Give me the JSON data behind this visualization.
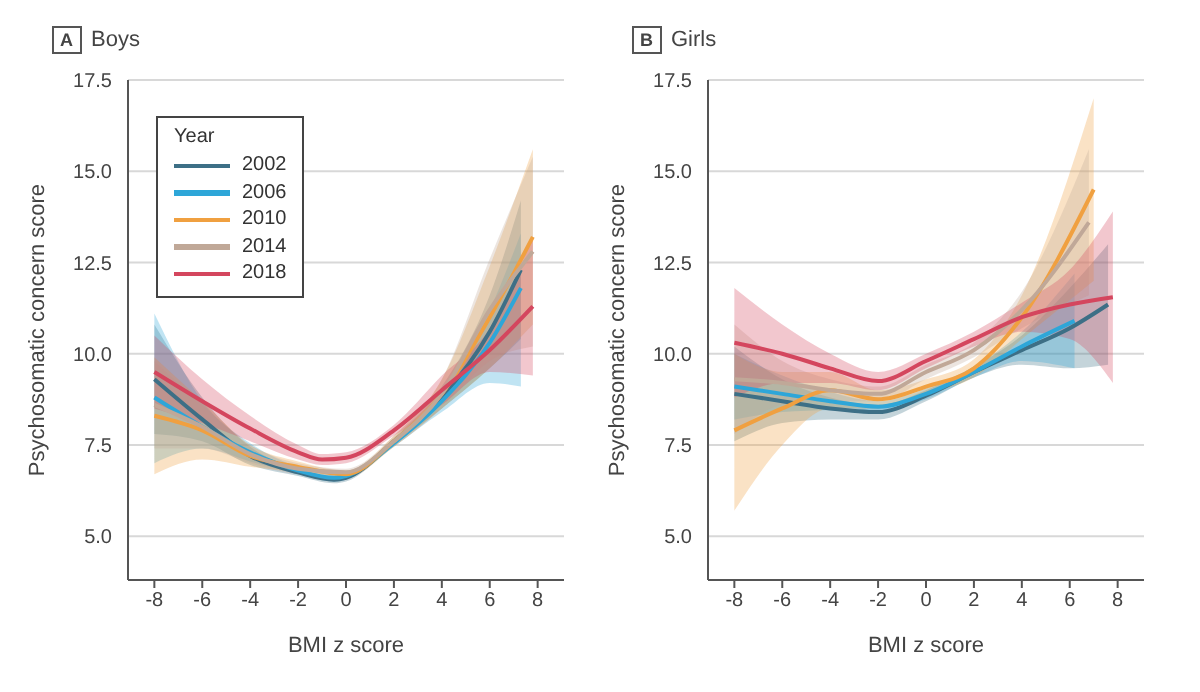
{
  "chart_data": [
    {
      "type": "line",
      "title": "Boys",
      "annotations": [
        "A"
      ],
      "xlabel": "BMI z score",
      "ylabel": "Psychosomatic concern score",
      "legend_title": "Year",
      "legend": "top left",
      "grid": "y",
      "marker": "none",
      "xlim": [
        -9.1,
        9.1
      ],
      "ylim": [
        3.8,
        17.5
      ],
      "xticks": [
        -8,
        -6,
        -4,
        -2,
        0,
        2,
        4,
        6,
        8
      ],
      "yticks": [
        {
          "value": 5,
          "label": "5.0"
        },
        {
          "value": 7.5,
          "label": "7.5"
        },
        {
          "value": 10,
          "label": "10.0"
        },
        {
          "value": 12.5,
          "label": "12.5"
        },
        {
          "value": 15,
          "label": "15.0"
        },
        {
          "value": 17.5,
          "label": "17.5"
        }
      ],
      "series": [
        {
          "name": "2002",
          "color": "#3d6f86",
          "x": [
            -8,
            -6,
            -4,
            -2,
            -0.5,
            0,
            2,
            4,
            6,
            7.3
          ],
          "values": [
            9.3,
            8.2,
            7.2,
            6.75,
            6.55,
            6.6,
            7.6,
            8.8,
            10.6,
            12.3
          ],
          "lower": [
            7.8,
            7.6,
            6.95,
            6.65,
            6.45,
            6.5,
            7.5,
            8.5,
            9.6,
            10.4
          ],
          "upper": [
            10.8,
            8.8,
            7.45,
            6.85,
            6.65,
            6.7,
            7.7,
            9.1,
            11.6,
            14.2
          ]
        },
        {
          "name": "2006",
          "color": "#2ea6d8",
          "x": [
            -8,
            -6,
            -4,
            -2,
            -0.5,
            0,
            2,
            4,
            6,
            7.3
          ],
          "values": [
            8.8,
            8.0,
            7.3,
            6.8,
            6.6,
            6.65,
            7.55,
            8.7,
            10.3,
            11.8
          ],
          "lower": [
            7.0,
            7.4,
            7.05,
            6.7,
            6.5,
            6.55,
            7.45,
            8.4,
            9.2,
            9.1
          ],
          "upper": [
            11.1,
            8.7,
            7.55,
            6.9,
            6.7,
            6.75,
            7.65,
            9.0,
            11.2,
            13.3
          ]
        },
        {
          "name": "2010",
          "color": "#f0a040",
          "x": [
            -8,
            -6,
            -4,
            -2,
            0,
            2,
            4,
            6,
            7.8
          ],
          "values": [
            8.3,
            7.9,
            7.2,
            6.9,
            6.7,
            7.6,
            8.9,
            11.0,
            13.2
          ],
          "lower": [
            6.7,
            7.1,
            6.9,
            6.75,
            6.6,
            7.45,
            8.5,
            9.6,
            10.8
          ],
          "upper": [
            9.9,
            8.7,
            7.5,
            7.05,
            6.8,
            7.75,
            9.3,
            12.4,
            15.6
          ]
        },
        {
          "name": "2014",
          "color": "#c0a898",
          "x": [
            -8,
            -6,
            -4,
            -2,
            0,
            2,
            4,
            6,
            7.8
          ],
          "values": [
            8.6,
            8.0,
            7.25,
            6.85,
            6.75,
            7.6,
            8.9,
            11.2,
            12.8
          ],
          "lower": [
            7.4,
            7.4,
            7.0,
            6.7,
            6.65,
            7.45,
            8.5,
            9.8,
            10.2
          ],
          "upper": [
            9.8,
            8.6,
            7.5,
            7.0,
            6.85,
            7.75,
            9.3,
            12.6,
            15.4
          ]
        },
        {
          "name": "2018",
          "color": "#d4465e",
          "x": [
            -8,
            -6,
            -4,
            -2,
            -1,
            0,
            2,
            4,
            6,
            7.8
          ],
          "values": [
            9.5,
            8.7,
            7.95,
            7.3,
            7.1,
            7.15,
            7.9,
            9.0,
            10.1,
            11.3
          ],
          "lower": [
            8.5,
            8.1,
            7.6,
            7.1,
            6.95,
            7.0,
            7.75,
            8.6,
            9.5,
            9.4
          ],
          "upper": [
            10.5,
            9.3,
            8.3,
            7.5,
            7.25,
            7.3,
            8.05,
            9.4,
            10.7,
            13.2
          ]
        }
      ]
    },
    {
      "type": "line",
      "title": "Girls",
      "annotations": [
        "B"
      ],
      "xlabel": "BMI z score",
      "ylabel": "Psychosomatic concern score",
      "grid": "y",
      "marker": "none",
      "xlim": [
        -9.1,
        9.1
      ],
      "ylim": [
        3.8,
        17.5
      ],
      "xticks": [
        -8,
        -6,
        -4,
        -2,
        0,
        2,
        4,
        6,
        8
      ],
      "yticks": [
        {
          "value": 5,
          "label": "5.0"
        },
        {
          "value": 7.5,
          "label": "7.5"
        },
        {
          "value": 10,
          "label": "10.0"
        },
        {
          "value": 12.5,
          "label": "12.5"
        },
        {
          "value": 15,
          "label": "15.0"
        },
        {
          "value": 17.5,
          "label": "17.5"
        }
      ],
      "series": [
        {
          "color": "#3d6f86",
          "x": [
            -8,
            -6,
            -4,
            -2,
            0,
            2,
            4,
            6,
            7.6
          ],
          "values": [
            8.9,
            8.7,
            8.5,
            8.4,
            8.85,
            9.5,
            10.1,
            10.7,
            11.35
          ],
          "lower": [
            7.6,
            8.1,
            8.2,
            8.2,
            8.7,
            9.35,
            9.7,
            9.6,
            9.7
          ],
          "upper": [
            10.2,
            9.3,
            8.8,
            8.6,
            9.0,
            9.65,
            10.5,
            11.8,
            13.0
          ]
        },
        {
          "color": "#2ea6d8",
          "x": [
            -8,
            -6,
            -4,
            -2,
            0,
            2,
            4,
            6.2
          ],
          "values": [
            9.1,
            8.9,
            8.7,
            8.55,
            8.9,
            9.5,
            10.2,
            10.9
          ],
          "lower": [
            8.2,
            8.4,
            8.45,
            8.4,
            8.75,
            9.35,
            9.8,
            9.6
          ],
          "upper": [
            10.0,
            9.4,
            8.95,
            8.7,
            9.05,
            9.65,
            10.6,
            12.2
          ]
        },
        {
          "color": "#f0a040",
          "x": [
            -8,
            -6,
            -4,
            -2,
            0,
            2,
            4,
            7
          ],
          "values": [
            7.9,
            8.5,
            9.0,
            8.75,
            9.1,
            9.6,
            11.0,
            14.5
          ],
          "lower": [
            5.7,
            7.5,
            8.5,
            8.5,
            8.9,
            9.35,
            10.4,
            12.0
          ],
          "upper": [
            10.0,
            9.5,
            9.5,
            9.0,
            9.3,
            9.85,
            11.6,
            17.0
          ]
        },
        {
          "color": "#c0a898",
          "x": [
            -8,
            -6,
            -4,
            -2,
            0,
            2,
            4,
            6.8
          ],
          "values": [
            9.3,
            9.2,
            9.0,
            8.9,
            9.5,
            10.1,
            11.2,
            13.6
          ],
          "lower": [
            7.8,
            8.6,
            8.7,
            8.7,
            9.3,
            9.9,
            10.7,
            11.6
          ],
          "upper": [
            10.8,
            9.8,
            9.3,
            9.1,
            9.7,
            10.3,
            11.7,
            15.6
          ]
        },
        {
          "color": "#d4465e",
          "x": [
            -8,
            -6,
            -4,
            -2,
            0,
            2,
            4,
            6,
            7.8
          ],
          "values": [
            10.3,
            10.0,
            9.6,
            9.25,
            9.8,
            10.4,
            11.0,
            11.35,
            11.55
          ],
          "lower": [
            8.8,
            9.2,
            9.2,
            9.0,
            9.6,
            10.2,
            10.6,
            10.4,
            9.2
          ],
          "upper": [
            11.8,
            10.8,
            10.0,
            9.5,
            10.0,
            10.6,
            11.4,
            12.3,
            13.9
          ]
        }
      ]
    }
  ]
}
